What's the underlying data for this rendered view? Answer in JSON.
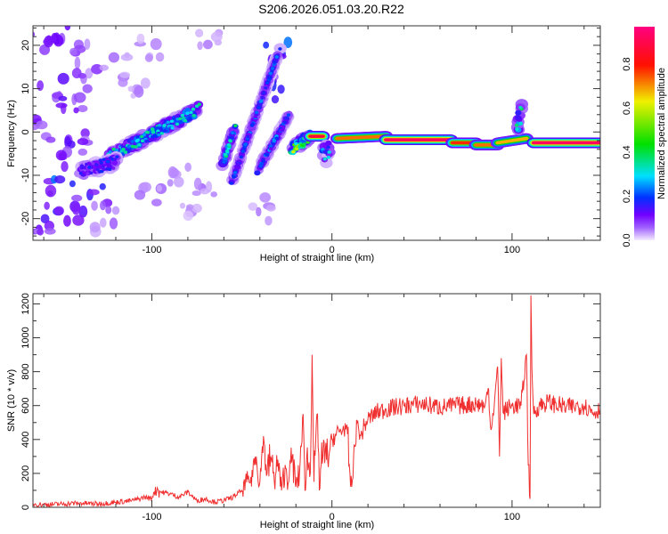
{
  "chart_data": [
    {
      "type": "heatmap",
      "title": "S206.2026.051.03.20.R22",
      "xlabel": "Height of straight line (km)",
      "ylabel": "Frequency (Hz)",
      "xlim": [
        -166,
        149
      ],
      "ylim": [
        -25,
        24.5
      ],
      "xticks": [
        -100,
        0,
        100
      ],
      "yticks": [
        -20,
        -10,
        0,
        10,
        20
      ],
      "colorbar": {
        "label": "Normalized spectral amplitude",
        "range": [
          0,
          0.97
        ],
        "ticks": [
          "0.0",
          "0.2",
          "0.4",
          "0.6",
          "0.8"
        ]
      },
      "ridges": [
        {
          "x0": -125,
          "f0": -6,
          "x1": -75,
          "f1": 5,
          "amp": 0.28
        },
        {
          "x0": -140,
          "f0": -9,
          "x1": -120,
          "f1": -7,
          "amp": 0.15
        },
        {
          "x0": -60,
          "f0": -7,
          "x1": -55,
          "f1": 0,
          "amp": 0.3
        },
        {
          "x0": -55,
          "f0": -11,
          "x1": -30,
          "f1": 18,
          "amp": 0.18
        },
        {
          "x0": -40,
          "f0": -8,
          "x1": -25,
          "f1": 3,
          "amp": 0.2
        },
        {
          "x0": -22,
          "f0": -4,
          "x1": -12,
          "f1": -1,
          "amp": 0.45
        },
        {
          "x0": -12,
          "f0": -1,
          "x1": -5,
          "f1": -1,
          "amp": 0.9
        },
        {
          "x0": -4,
          "f0": -3,
          "x1": -2,
          "f1": -6,
          "amp": 0.25
        },
        {
          "x0": 3,
          "f0": -1.5,
          "x1": 30,
          "f1": -1,
          "amp": 0.75
        },
        {
          "x0": 30,
          "f0": -1.8,
          "x1": 66,
          "f1": -1.8,
          "amp": 0.95
        },
        {
          "x0": 67,
          "f0": -2.5,
          "x1": 80,
          "f1": -2.5,
          "amp": 0.8
        },
        {
          "x0": 80,
          "f0": -3,
          "x1": 92,
          "f1": -3,
          "amp": 0.75
        },
        {
          "x0": 92,
          "f0": -2.5,
          "x1": 108,
          "f1": -1.5,
          "amp": 0.7
        },
        {
          "x0": 104,
          "f0": 1,
          "x1": 104,
          "f1": 5,
          "amp": 0.3
        },
        {
          "x0": 112,
          "f0": -2.5,
          "x1": 149,
          "f1": -2.5,
          "amp": 0.95
        }
      ],
      "blobs": [
        [
          -160,
          20,
          0.1
        ],
        [
          -150,
          22,
          0.15
        ],
        [
          -140,
          18,
          0.08
        ],
        [
          -155,
          10,
          0.12
        ],
        [
          -145,
          5,
          0.1
        ],
        [
          -162,
          0,
          0.1
        ],
        [
          -135,
          12,
          0.08
        ],
        [
          -150,
          -12,
          0.2
        ],
        [
          -158,
          -20,
          0.15
        ],
        [
          -145,
          -18,
          0.12
        ],
        [
          -130,
          -15,
          0.15
        ],
        [
          -140,
          -3,
          0.1
        ],
        [
          -120,
          15,
          0.05
        ],
        [
          -110,
          10,
          0.05
        ],
        [
          -125,
          -20,
          0.06
        ],
        [
          -100,
          -15,
          0.05
        ],
        [
          -85,
          -10,
          0.05
        ],
        [
          -68,
          22,
          0.05
        ],
        [
          -80,
          -20,
          0.04
        ],
        [
          -40,
          -18,
          0.05
        ],
        [
          -30,
          18,
          0.2
        ],
        [
          -35,
          10,
          0.15
        ],
        [
          -70,
          -14,
          0.05
        ],
        [
          -160,
          -24,
          0.1
        ],
        [
          -150,
          -5,
          0.12
        ],
        [
          -100,
          20,
          0.04
        ]
      ]
    },
    {
      "type": "line",
      "xlabel": "Height of straight line (km)",
      "ylabel": "SNR (10 * v/v)",
      "xlim": [
        -166,
        149
      ],
      "ylim": [
        0,
        1260
      ],
      "xticks": [
        -100,
        0,
        100
      ],
      "yticks": [
        0,
        200,
        400,
        600,
        800,
        1000,
        1200
      ],
      "color": "#f03030",
      "x": [
        -166,
        -160,
        -150,
        -140,
        -130,
        -120,
        -110,
        -104,
        -100,
        -98,
        -95,
        -90,
        -85,
        -80,
        -75,
        -70,
        -65,
        -60,
        -55,
        -50,
        -45,
        -42,
        -40,
        -38,
        -36,
        -34,
        -32,
        -30,
        -28,
        -26,
        -24,
        -22,
        -20,
        -18,
        -16,
        -15,
        -14,
        -12,
        -11,
        -10,
        -9,
        -8,
        -7,
        -6,
        -5,
        -3,
        -1,
        0,
        2,
        5,
        8,
        10,
        11,
        12,
        14,
        16,
        18,
        20,
        25,
        30,
        40,
        50,
        60,
        70,
        80,
        85,
        87,
        88,
        90,
        92,
        93,
        94,
        95,
        100,
        105,
        108,
        109,
        110,
        110.5,
        111,
        112,
        115,
        120,
        130,
        140,
        145,
        149
      ],
      "y": [
        20,
        15,
        20,
        25,
        20,
        30,
        40,
        60,
        50,
        120,
        90,
        80,
        60,
        90,
        40,
        50,
        30,
        40,
        60,
        100,
        180,
        300,
        150,
        420,
        200,
        300,
        150,
        280,
        100,
        250,
        150,
        300,
        120,
        200,
        550,
        100,
        300,
        200,
        900,
        150,
        400,
        550,
        100,
        250,
        300,
        280,
        350,
        400,
        430,
        450,
        480,
        200,
        120,
        300,
        500,
        420,
        480,
        520,
        560,
        580,
        600,
        610,
        590,
        600,
        610,
        600,
        700,
        480,
        580,
        830,
        300,
        880,
        560,
        600,
        600,
        900,
        250,
        50,
        1250,
        820,
        550,
        600,
        620,
        590,
        600,
        560,
        580
      ]
    }
  ]
}
